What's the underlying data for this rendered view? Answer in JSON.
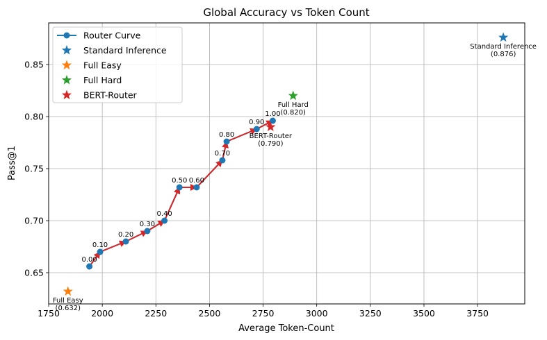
{
  "chart_data": {
    "type": "line",
    "title": "Global Accuracy vs Token Count",
    "xlabel": "Average Token-Count",
    "ylabel": "Pass@1",
    "xlim": [
      1750,
      3970
    ],
    "ylim": [
      0.62,
      0.89
    ],
    "x_ticks": [
      1750,
      2000,
      2250,
      2500,
      2750,
      3000,
      3250,
      3500,
      3750
    ],
    "x_tick_labels": [
      "1750",
      "2000",
      "2250",
      "2500",
      "2750",
      "3000",
      "3250",
      "3500",
      "3750"
    ],
    "y_ticks": [
      0.65,
      0.7,
      0.75,
      0.8,
      0.85
    ],
    "y_tick_labels": [
      "0.65",
      "0.70",
      "0.75",
      "0.80",
      "0.85"
    ],
    "grid": true,
    "legend_position": "top-left",
    "series": [
      {
        "name": "Router Curve",
        "kind": "line-markers",
        "color": "#1f77b4",
        "arrow_color": "#d62728",
        "points": [
          {
            "x": 1940,
            "y": 0.656,
            "label": "0.00"
          },
          {
            "x": 1990,
            "y": 0.67,
            "label": "0.10"
          },
          {
            "x": 2110,
            "y": 0.68,
            "label": "0.20"
          },
          {
            "x": 2210,
            "y": 0.69,
            "label": "0.30"
          },
          {
            "x": 2290,
            "y": 0.7,
            "label": "0.40"
          },
          {
            "x": 2360,
            "y": 0.732,
            "label": "0.50"
          },
          {
            "x": 2440,
            "y": 0.732,
            "label": "0.60"
          },
          {
            "x": 2560,
            "y": 0.758,
            "label": "0.70"
          },
          {
            "x": 2580,
            "y": 0.776,
            "label": "0.80"
          },
          {
            "x": 2720,
            "y": 0.788,
            "label": "0.90"
          },
          {
            "x": 2795,
            "y": 0.796,
            "label": "1.00"
          }
        ]
      },
      {
        "name": "Standard Inference",
        "kind": "star",
        "color": "#1f77b4",
        "x": 3870,
        "y": 0.876,
        "annotation": [
          "Standard Inference",
          "(0.876)"
        ]
      },
      {
        "name": "Full Easy",
        "kind": "star",
        "color": "#ff7f0e",
        "x": 1840,
        "y": 0.632,
        "annotation": [
          "Full Easy",
          "(0.632)"
        ]
      },
      {
        "name": "Full Hard",
        "kind": "star",
        "color": "#2ca02c",
        "x": 2890,
        "y": 0.82,
        "annotation": [
          "Full Hard",
          "(0.820)"
        ]
      },
      {
        "name": "BERT-Router",
        "kind": "star",
        "color": "#d62728",
        "x": 2785,
        "y": 0.79,
        "annotation": [
          "BERT-Router",
          "(0.790)"
        ]
      }
    ]
  }
}
